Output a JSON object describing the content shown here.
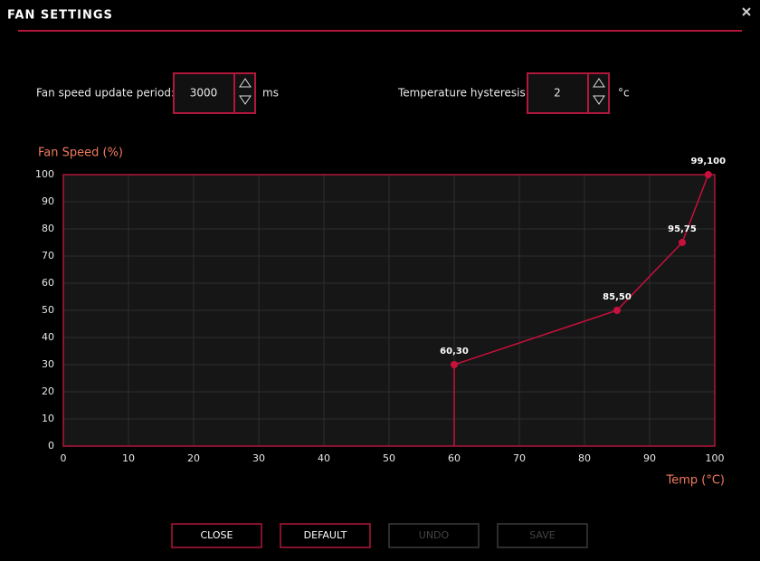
{
  "header": {
    "title": "FAN SETTINGS"
  },
  "controls": [
    {
      "label": "Fan speed update period:",
      "value": 3000,
      "unit": "ms"
    },
    {
      "label": "Temperature hysteresis:",
      "value": 2,
      "unit": "°c"
    }
  ],
  "chart_data": {
    "type": "line",
    "y_label": "Fan Speed (%)",
    "x_label": "Temp (°C)",
    "x": [
      60,
      85,
      95,
      99
    ],
    "values": [
      30,
      50,
      75,
      100
    ],
    "value_labels": [
      "60,30",
      "85,50",
      "95,75",
      "99,100"
    ],
    "color": "#c8103c",
    "xlim": [
      0,
      100
    ],
    "ylim": [
      0,
      100
    ],
    "xticks": [
      0,
      10,
      20,
      30,
      40,
      50,
      60,
      70,
      80,
      90,
      100
    ],
    "yticks": [
      0,
      10,
      20,
      30,
      40,
      50,
      60,
      70,
      80,
      90,
      100
    ],
    "grid": true
  },
  "buttons": [
    {
      "label": "CLOSE",
      "enabled": true
    },
    {
      "label": "DEFAULT",
      "enabled": true
    },
    {
      "label": "UNDO",
      "enabled": false
    },
    {
      "label": "SAVE",
      "enabled": false
    }
  ]
}
